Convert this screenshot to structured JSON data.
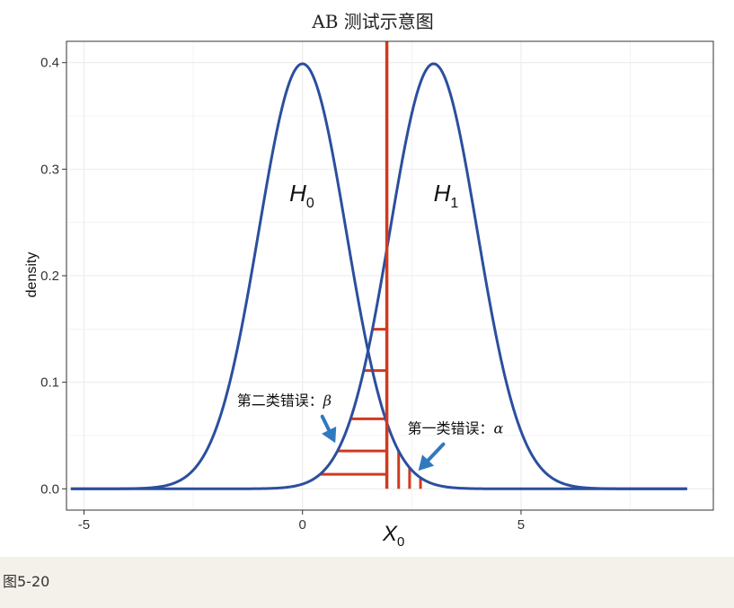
{
  "figure_caption": "图5-20",
  "colors": {
    "curve": "#2b4f9e",
    "critical": "#d13a1f",
    "arrow": "#2f79c0",
    "grid": "#ebebeb"
  },
  "chart_data": {
    "type": "line",
    "title": "AB 测试示意图",
    "xlabel": "X",
    "xlabel_sub": "0",
    "ylabel": "density",
    "xlim": [
      -5.4,
      9.4
    ],
    "ylim": [
      -0.02,
      0.42
    ],
    "x_ticks": [
      -5,
      0,
      5
    ],
    "y_ticks": [
      0.0,
      0.1,
      0.2,
      0.3,
      0.4
    ],
    "y_tick_labels": [
      "0.0",
      "0.1",
      "0.2",
      "0.3",
      "0.4"
    ],
    "grid": true,
    "series": [
      {
        "name": "H0",
        "dist": "normal",
        "mean": 0,
        "sd": 1,
        "x_range": [
          -5.3,
          8.8
        ]
      },
      {
        "name": "H1",
        "dist": "normal",
        "mean": 3,
        "sd": 1,
        "x_range": [
          -5.3,
          8.8
        ]
      }
    ],
    "critical_value": 1.93,
    "hypothesis_labels": [
      {
        "text": "H",
        "sub": "0",
        "x": -0.3,
        "y": 0.27
      },
      {
        "text": "H",
        "sub": "1",
        "x": 3.0,
        "y": 0.27
      }
    ],
    "beta_hatch_x": [
      0.4,
      0.8,
      1.1,
      1.4,
      1.6
    ],
    "alpha_hatch_x": [
      2.2,
      2.45,
      2.7
    ],
    "annotations": [
      {
        "text": "第二类错误：",
        "symbol": "β",
        "x": -1.5,
        "y": 0.078,
        "arrow_to": [
          0.75,
          0.043
        ]
      },
      {
        "text": "第一类错误：",
        "symbol": "α",
        "x": 2.4,
        "y": 0.052,
        "arrow_to": [
          2.65,
          0.017
        ]
      }
    ]
  }
}
